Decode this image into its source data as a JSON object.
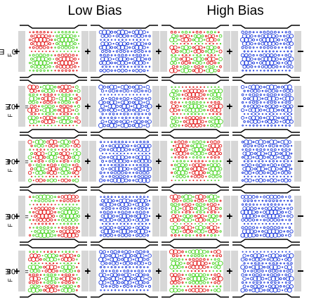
{
  "headers": {
    "low_bias": "Low Bias",
    "high_bias": "High Bias"
  },
  "rows": [
    {
      "prefix": "E",
      "subscript": "F",
      "value": " = 0"
    },
    {
      "prefix": "E",
      "subscript": "F",
      "value": " = 0.02"
    },
    {
      "prefix": "E",
      "subscript": "F",
      "value": " = 0.04"
    },
    {
      "prefix": "E",
      "subscript": "F",
      "value": " = 0.06"
    },
    {
      "prefix": "E",
      "subscript": "F",
      "value": " = 0.08"
    }
  ],
  "terminals": {
    "plus": "+",
    "minus": "−"
  },
  "colors": {
    "positive": "#e11919",
    "negative": "#46d21e",
    "density": "#1e3cdc",
    "lead_gray": "#d7d7d7",
    "outline": "#000000"
  },
  "panel_types": [
    "signed",
    "density",
    "signed",
    "density"
  ]
}
